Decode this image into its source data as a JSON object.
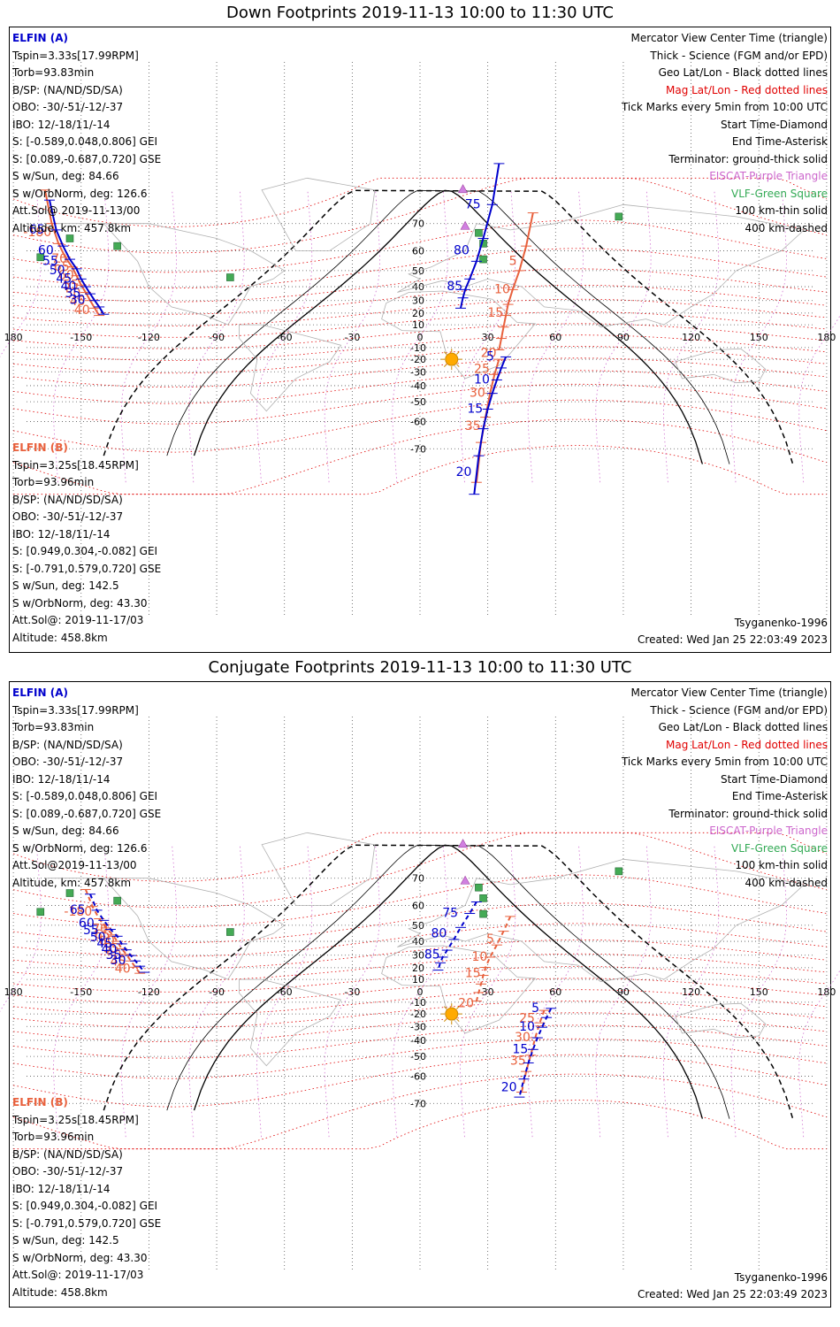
{
  "panels": [
    {
      "title": "Down Footprints 2019-11-13 10:00 to 11:30 UTC",
      "elfin_a": {
        "name": "ELFIN (A)",
        "lines": [
          "Tspin=3.33s[17.99RPM]",
          "Torb=93.83min",
          "B/SP: (NA/ND/SD/SA)",
          "OBO: -30/-51/-12/-37",
          "IBO: 12/-18/11/-14",
          "S: [-0.589,0.048,0.806] GEI",
          "S: [0.089,-0.687,0.720] GSE",
          "S w/Sun, deg: 84.66",
          "S w/OrbNorm, deg: 126.6",
          "Att.Sol@ 2019-11-13/00",
          "Altitude, km: 457.8km"
        ]
      },
      "elfin_b": {
        "name": "ELFIN (B)",
        "lines": [
          "Tspin=3.25s[18.45RPM]",
          "Torb=93.96min",
          "B/SP: (NA/ND/SD/SA)",
          "OBO: -30/-51/-12/-37",
          "IBO: 12/-18/11/-14",
          "S: [0.949,0.304,-0.082] GEI",
          "S: [-0.791,0.579,0.720] GSE",
          "S w/Sun, deg: 142.5",
          "S w/OrbNorm, deg: 43.30",
          "Att.Sol@: 2019-11-17/03",
          "Altitude: 458.8km"
        ]
      },
      "legend": [
        "Mercator View Center Time (triangle)",
        "Thick - Science (FGM and/or EPD)",
        "Geo Lat/Lon - Black dotted lines",
        "Mag Lat/Lon - Red dotted lines",
        "Tick Marks every 5min from 10:00 UTC",
        "Start Time-Diamond",
        "End Time-Asterisk",
        "Terminator: ground-thick solid",
        "EISCAT-Purple Triangle",
        "VLF-Green Square",
        "100 km-thin solid",
        "400 km-dashed"
      ],
      "model": "Tsyganenko-1996",
      "created": "Created: Wed Jan 25 22:03:49 2023"
    },
    {
      "title": "Conjugate Footprints 2019-11-13 10:00 to 11:30 UTC",
      "elfin_a": {
        "name": "ELFIN (A)",
        "lines": [
          "Tspin=3.33s[17.99RPM]",
          "Torb=93.83min",
          "B/SP: (NA/ND/SD/SA)",
          "OBO: -30/-51/-12/-37",
          "IBO: 12/-18/11/-14",
          "S: [-0.589,0.048,0.806] GEI",
          "S: [0.089,-0.687,0.720] GSE",
          "S w/Sun, deg: 84.66",
          "S w/OrbNorm, deg: 126.6",
          "Att.Sol@2019-11-13/00",
          "Altitude, km: 457.8km"
        ]
      },
      "elfin_b": {
        "name": "ELFIN (B)",
        "lines": [
          "Tspin=3.25s[18.45RPM]",
          "Torb=93.96min",
          "B/SP: (NA/ND/SD/SA)",
          "OBO: -30/-51/-12/-37",
          "IBO: 12/-18/11/-14",
          "S: [0.949,0.304,-0.082] GEI",
          "S: [-0.791,0.579,0.720] GSE",
          "S w/Sun, deg: 142.5",
          "S w/OrbNorm, deg: 43.30",
          "Att.Sol@: 2019-11-17/03",
          "Altitude: 458.8km"
        ]
      },
      "legend": [
        "Mercator View Center Time (triangle)",
        "Thick - Science (FGM and/or EPD)",
        "Geo Lat/Lon - Black dotted lines",
        "Mag Lat/Lon - Red dotted lines",
        "Tick Marks every 5min from 10:00 UTC",
        "Start Time-Diamond",
        "End Time-Asterisk",
        "Terminator: ground-thick solid",
        "EISCAT-Purple Triangle",
        "VLF-Green Square",
        "100 km-thin solid",
        "400 km-dashed"
      ],
      "model": "Tsyganenko-1996",
      "created": "Created: Wed Jan 25 22:03:49 2023"
    }
  ],
  "axes": {
    "lon_ticks": [
      "180",
      "-150",
      "-120",
      "-90",
      "-60",
      "-30",
      "0",
      "30",
      "60",
      "90",
      "120",
      "150",
      "180"
    ],
    "lat_ticks": [
      "70",
      "60",
      "50",
      "40",
      "30",
      "20",
      "10",
      "-10",
      "-20",
      "-30",
      "-40",
      "-50",
      "-60",
      "-70"
    ]
  },
  "colors": {
    "elfin_a": "#0000cc",
    "elfin_b": "#e8603c",
    "mag_grid": "#e00000",
    "geo_grid": "#000000",
    "eiscat": "#cc66cc",
    "vlf": "#33aa55",
    "sun": "#ffaa00"
  },
  "tracks": {
    "down_a": {
      "north": [
        [
          -164,
          76
        ],
        [
          -161,
          68
        ],
        [
          -158,
          62
        ],
        [
          -155,
          56
        ],
        [
          -152,
          51
        ],
        [
          -150,
          45
        ],
        [
          -148,
          40
        ],
        [
          -146,
          35
        ],
        [
          -144,
          30
        ],
        [
          -142,
          25
        ],
        [
          -140,
          19
        ]
      ],
      "north_labels": [
        [
          "65",
          -163,
          68
        ],
        [
          "60",
          -159,
          60
        ],
        [
          "55",
          -157,
          55
        ],
        [
          "50",
          -154,
          50
        ],
        [
          "45",
          -151,
          45
        ],
        [
          "40",
          -149,
          40
        ],
        [
          "35",
          -147,
          35
        ],
        [
          "30",
          -145,
          30
        ]
      ],
      "mid": [
        [
          35,
          82
        ],
        [
          32,
          75
        ],
        [
          28,
          65
        ],
        [
          25,
          55
        ],
        [
          22,
          45
        ],
        [
          20,
          38
        ],
        [
          19,
          32
        ],
        [
          18,
          24
        ]
      ],
      "mid_labels": [
        [
          "75",
          30,
          75
        ],
        [
          "80",
          25,
          60
        ],
        [
          "85",
          22,
          40
        ]
      ],
      "south": [
        [
          38,
          -18
        ],
        [
          36,
          -27
        ],
        [
          34,
          -36
        ],
        [
          32,
          -45
        ],
        [
          30,
          -54
        ],
        [
          28,
          -63
        ],
        [
          26,
          -72
        ],
        [
          24,
          -80
        ]
      ],
      "south_labels": [
        [
          "5",
          36,
          -18
        ],
        [
          "10",
          34,
          -36
        ],
        [
          "15",
          31,
          -54
        ],
        [
          "20",
          26,
          -76
        ]
      ]
    },
    "down_b": {
      "north": [
        [
          -166,
          78
        ],
        [
          -163,
          70
        ],
        [
          -160,
          63
        ],
        [
          -157,
          57
        ],
        [
          -154,
          52
        ],
        [
          -152,
          47
        ],
        [
          -150,
          41
        ],
        [
          -148,
          36
        ],
        [
          -146,
          30
        ],
        [
          -144,
          24
        ],
        [
          -142,
          18
        ]
      ],
      "north_labels": [
        [
          "-180",
          -160,
          67
        ],
        [
          "70",
          -153,
          56
        ],
        [
          "65",
          -152,
          52
        ],
        [
          "60",
          -150,
          47
        ],
        [
          "55",
          -148,
          41
        ],
        [
          "50",
          -147,
          35
        ],
        [
          "45",
          -145,
          29
        ],
        [
          "40",
          -143,
          22
        ]
      ],
      "mid": [
        [
          50,
          73
        ],
        [
          47,
          62
        ],
        [
          44,
          50
        ],
        [
          41,
          38
        ],
        [
          39,
          27
        ],
        [
          38,
          18
        ],
        [
          37,
          8
        ],
        [
          36,
          -2
        ],
        [
          35,
          -12
        ]
      ],
      "mid_labels": [
        [
          "5",
          46,
          55
        ],
        [
          "10",
          43,
          38
        ],
        [
          "15",
          40,
          20
        ],
        [
          "20",
          37,
          -15
        ]
      ],
      "south": [
        [
          35,
          -20
        ],
        [
          33,
          -32
        ],
        [
          31,
          -45
        ],
        [
          29,
          -58
        ],
        [
          27,
          -68
        ],
        [
          25,
          -78
        ]
      ],
      "south_labels": [
        [
          "25",
          34,
          -28
        ],
        [
          "30",
          32,
          -45
        ],
        [
          "35",
          30,
          -62
        ]
      ]
    }
  }
}
